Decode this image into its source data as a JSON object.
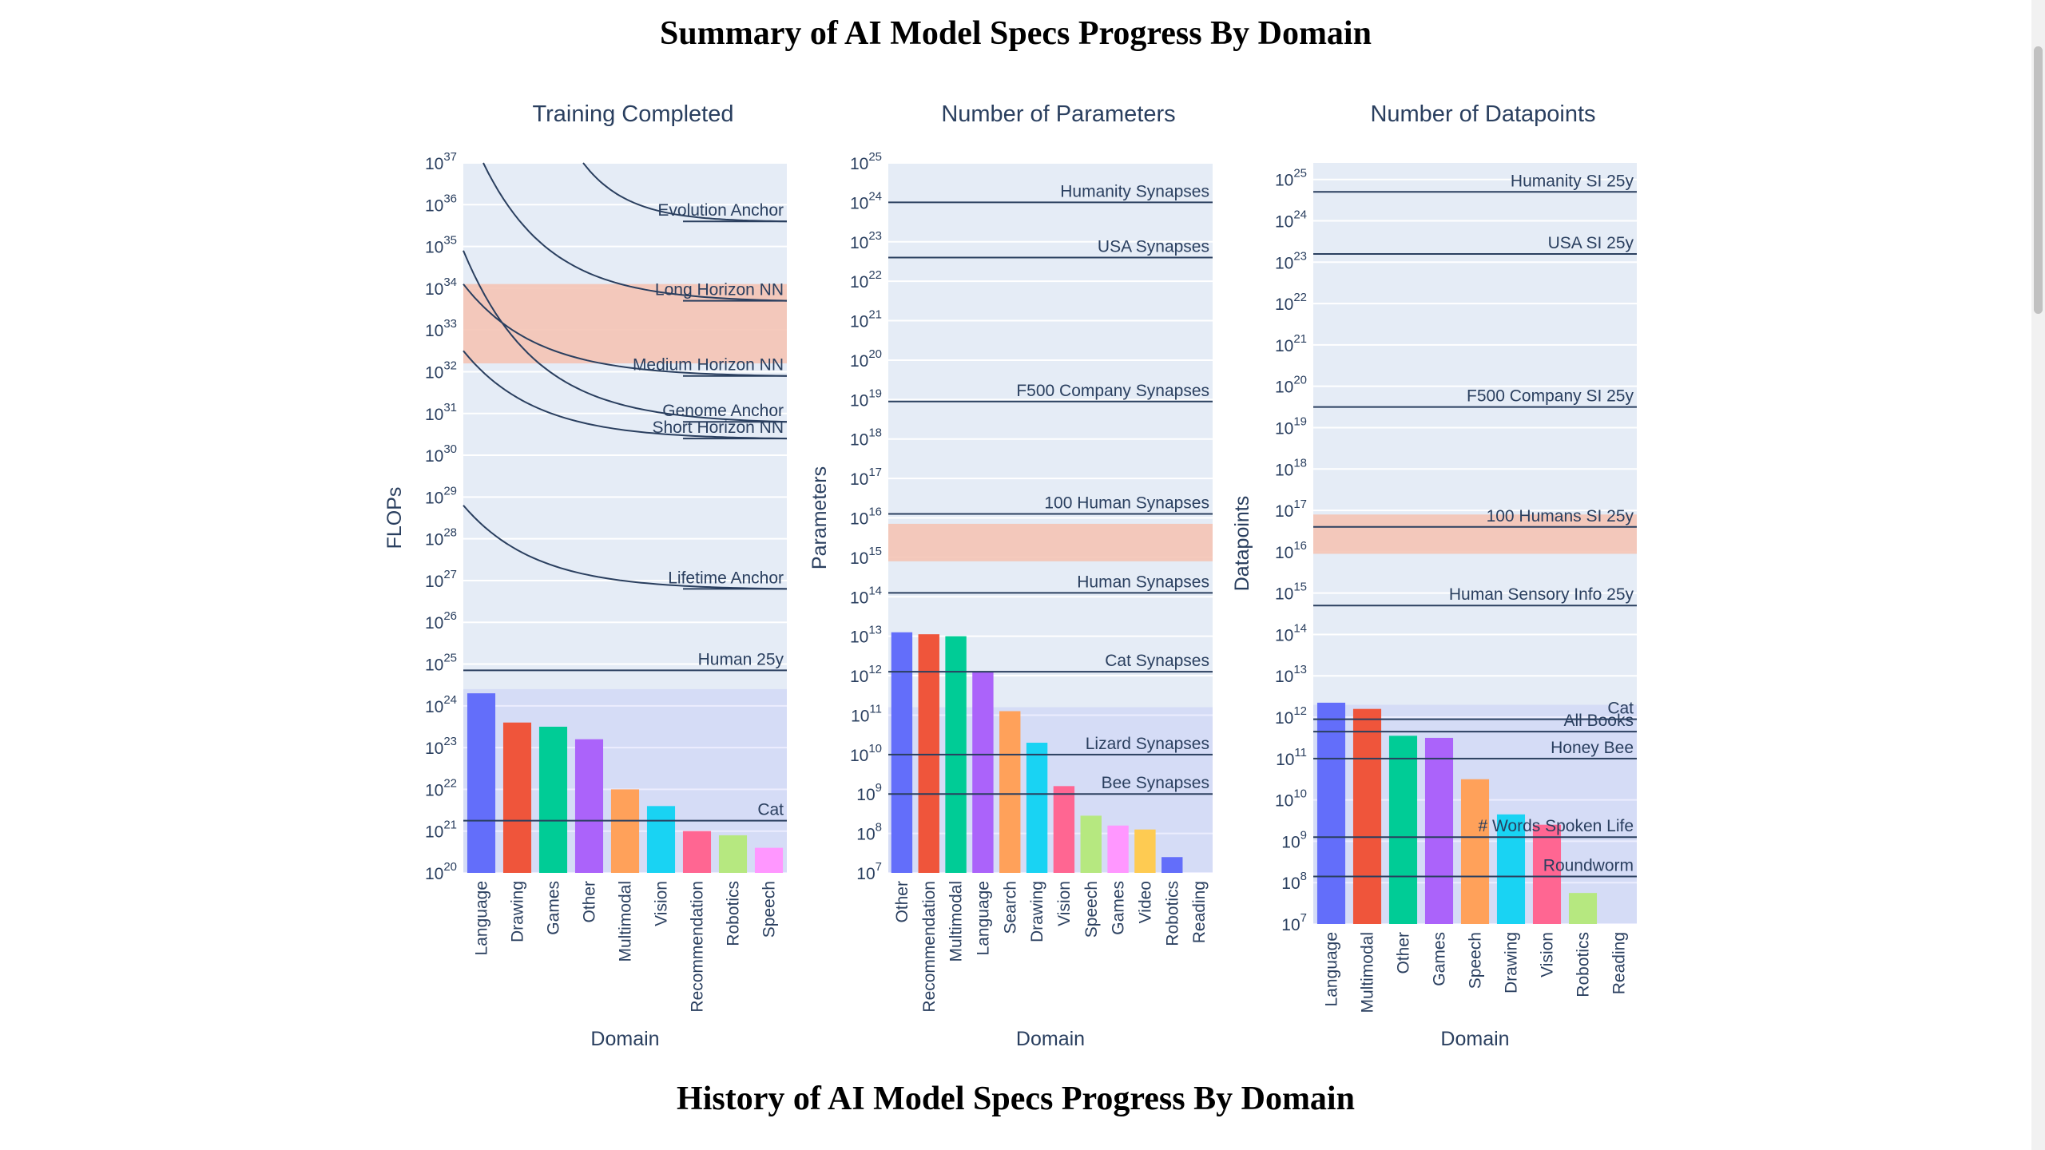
{
  "page": {
    "summary_title": "Summary of AI Model Specs Progress By Domain",
    "history_title": "History of AI Model Specs Progress By Domain"
  },
  "colors": {
    "plot_bg": "#e5ecf6",
    "band_fill": "#f4c4b5",
    "text": "#2a3f5f",
    "line": "#2a3f5f",
    "palette": [
      "#636efa",
      "#ef553b",
      "#00cc96",
      "#ab63fa",
      "#ffa15a",
      "#19d3f3",
      "#ff6692",
      "#b6e880",
      "#ff97ff",
      "#fecb52"
    ]
  },
  "chart_data": [
    {
      "type": "bar",
      "title": "Training Completed",
      "xlabel": "Domain",
      "ylabel": "FLOPs",
      "y_scale": "log",
      "ylim_exp": [
        20,
        37
      ],
      "categories": [
        "Language",
        "Drawing",
        "Games",
        "Other",
        "Multimodal",
        "Vision",
        "Recommendation",
        "Robotics",
        "Speech"
      ],
      "values_exp": [
        24.3,
        23.6,
        23.5,
        23.2,
        22.0,
        21.6,
        21.0,
        20.9,
        20.6
      ],
      "overlay_band_exp": [
        20,
        24.4
      ],
      "shaded_band_exp": [
        32.2,
        34.1
      ],
      "reference_lines": [
        {
          "label": "Evolution Anchor",
          "exp": 35.6
        },
        {
          "label": "Long Horizon NN",
          "exp": 33.7
        },
        {
          "label": "Medium Horizon NN",
          "exp": 31.9
        },
        {
          "label": "Genome Anchor",
          "exp": 30.8
        },
        {
          "label": "Short Horizon NN",
          "exp": 30.4
        },
        {
          "label": "Lifetime Anchor",
          "exp": 26.8
        },
        {
          "label": "Human 25y",
          "exp": 24.85
        },
        {
          "label": "Cat",
          "exp": 21.25
        }
      ],
      "decay_curves": [
        {
          "start_exp": 37.0,
          "end_exp": 35.6
        },
        {
          "start_exp": 37.0,
          "end_exp": 33.7
        },
        {
          "start_exp": 34.1,
          "end_exp": 31.9
        },
        {
          "start_exp": 34.9,
          "end_exp": 30.8
        },
        {
          "start_exp": 32.5,
          "end_exp": 30.4
        },
        {
          "start_exp": 28.8,
          "end_exp": 26.8
        }
      ]
    },
    {
      "type": "bar",
      "title": "Number of Parameters",
      "xlabel": "Domain",
      "ylabel": "Parameters",
      "y_scale": "log",
      "ylim_exp": [
        7,
        25
      ],
      "categories": [
        "Other",
        "Recommendation",
        "Multimodal",
        "Language",
        "Search",
        "Drawing",
        "Vision",
        "Speech",
        "Games",
        "Video",
        "Robotics",
        "Reading"
      ],
      "values_exp": [
        13.1,
        13.05,
        13.0,
        12.1,
        11.1,
        10.3,
        9.2,
        8.45,
        8.2,
        8.1,
        7.4,
        null
      ],
      "overlay_band_exp": [
        7,
        11.2
      ],
      "shaded_band_exp": [
        14.9,
        15.85
      ],
      "reference_lines": [
        {
          "label": "Humanity Synapses",
          "exp": 24.0
        },
        {
          "label": "USA Synapses",
          "exp": 22.6
        },
        {
          "label": "F500 Company Synapses",
          "exp": 18.95
        },
        {
          "label": "100 Human Synapses",
          "exp": 16.1
        },
        {
          "label": "Human Synapses",
          "exp": 14.1
        },
        {
          "label": "Cat Synapses",
          "exp": 12.1
        },
        {
          "label": "Lizard Synapses",
          "exp": 10.0
        },
        {
          "label": "Bee Synapses",
          "exp": 9.0
        }
      ]
    },
    {
      "type": "bar",
      "title": "Number of Datapoints",
      "xlabel": "Domain",
      "ylabel": "Datapoints",
      "y_scale": "log",
      "ylim_exp": [
        7,
        25.4
      ],
      "categories": [
        "Language",
        "Multimodal",
        "Other",
        "Games",
        "Speech",
        "Drawing",
        "Vision",
        "Robotics",
        "Reading"
      ],
      "values_exp": [
        12.35,
        12.2,
        11.55,
        11.5,
        10.5,
        9.65,
        9.4,
        7.75,
        null
      ],
      "overlay_band_exp": [
        7,
        12.3
      ],
      "shaded_band_exp": [
        15.95,
        16.9
      ],
      "reference_lines": [
        {
          "label": "Humanity SI 25y",
          "exp": 24.7
        },
        {
          "label": "USA SI 25y",
          "exp": 23.2
        },
        {
          "label": "F500 Company SI 25y",
          "exp": 19.5
        },
        {
          "label": "100 Humans SI 25y",
          "exp": 16.6
        },
        {
          "label": "Human Sensory Info 25y",
          "exp": 14.7
        },
        {
          "label": "Cat",
          "exp": 11.95
        },
        {
          "label": "All Books",
          "exp": 11.65
        },
        {
          "label": "Honey Bee",
          "exp": 11.0
        },
        {
          "label": "# Words Spoken Life",
          "exp": 9.1
        },
        {
          "label": "Roundworm",
          "exp": 8.15
        }
      ]
    }
  ]
}
